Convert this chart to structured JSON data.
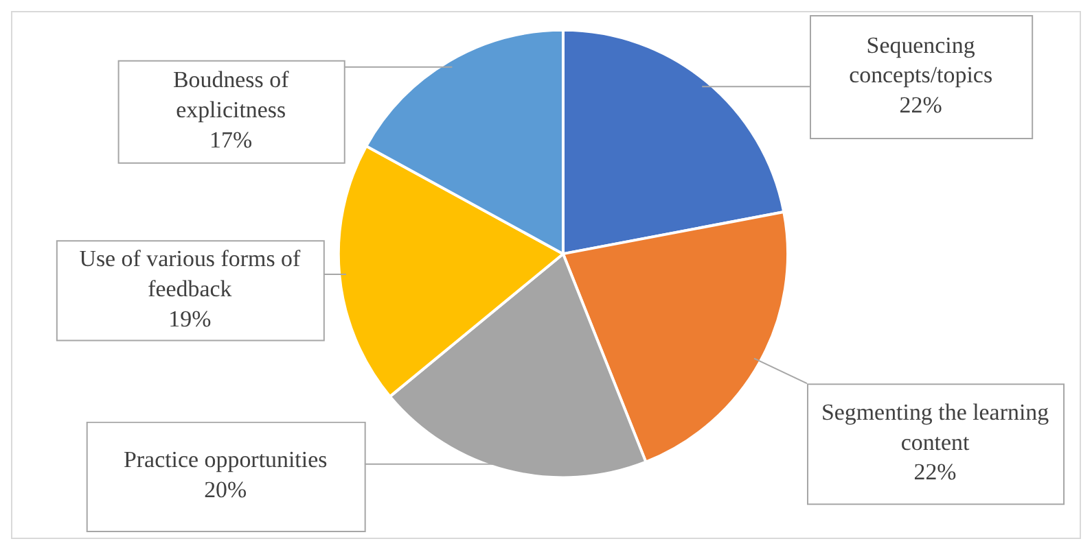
{
  "chart_data": {
    "type": "pie",
    "categories": [
      "Sequencing concepts/topics",
      "Segmenting the learning content",
      "Practice opportunities",
      "Use of various forms of feedback",
      "Boudness of explicitness"
    ],
    "values": [
      22,
      22,
      20,
      19,
      17
    ],
    "value_labels": [
      "22%",
      "22%",
      "20%",
      "19%",
      "17%"
    ],
    "colors": [
      "#4472c4",
      "#ed7d31",
      "#a5a5a5",
      "#ffc000",
      "#5b9bd5"
    ],
    "legend": false
  }
}
